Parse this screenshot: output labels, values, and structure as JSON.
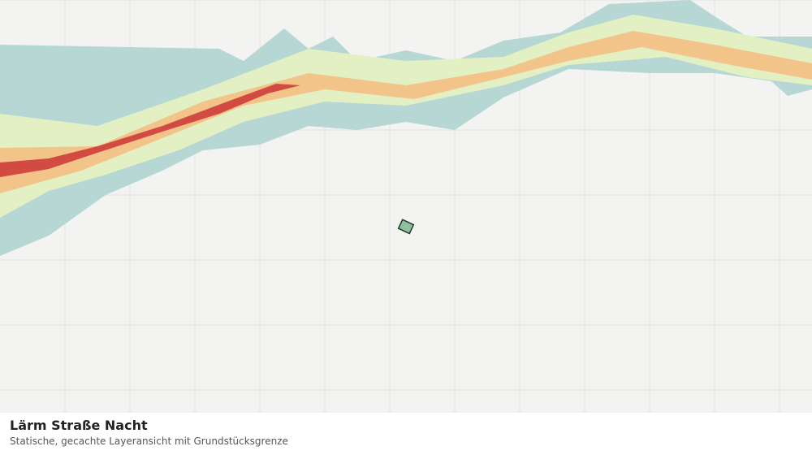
{
  "header": {
    "title": "Lärm Straße Nacht",
    "subtitle": "Statische, gecachte Layeransicht mit Grundstücksgrenze"
  }
}
